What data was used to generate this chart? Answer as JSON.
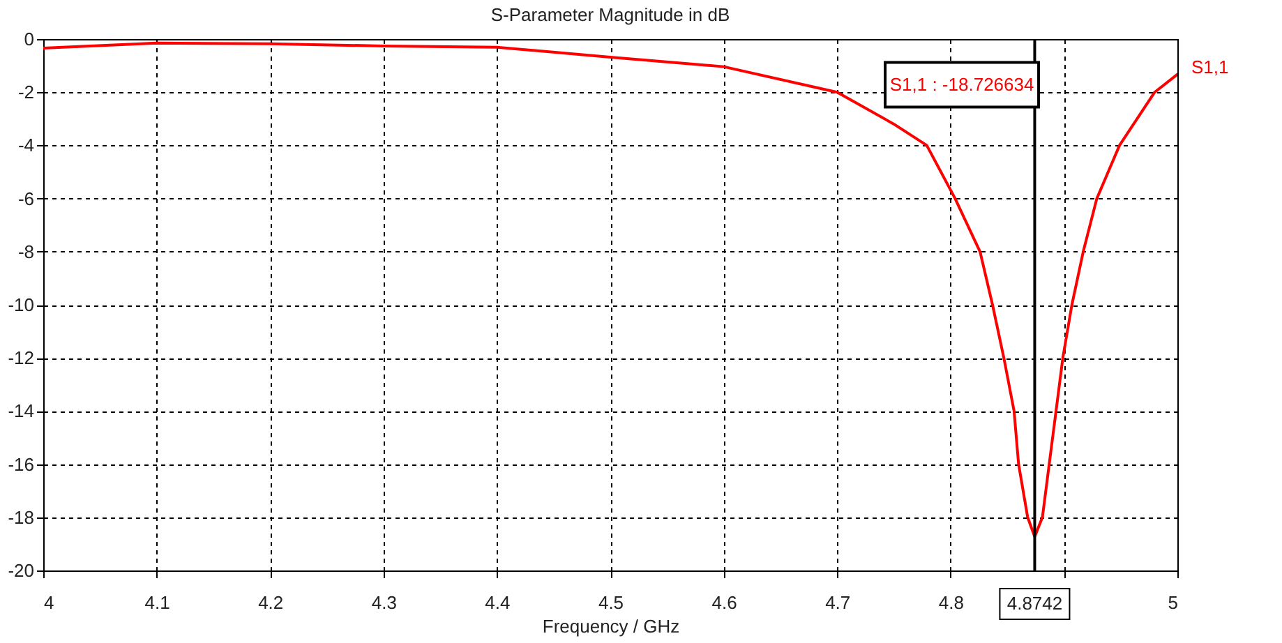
{
  "chart_data": {
    "type": "line",
    "title": "S-Parameter Magnitude in dB",
    "xlabel": "Frequency / GHz",
    "x": [
      4,
      4.1,
      4.2,
      4.3,
      4.4,
      4.5,
      4.6,
      4.7,
      4.75,
      4.779,
      4.804,
      4.826,
      4.837,
      4.847,
      4.856,
      4.86,
      4.868,
      4.8742,
      4.881,
      4.887,
      4.893,
      4.899,
      4.907,
      4.917,
      4.929,
      4.949,
      4.98,
      5
    ],
    "series": [
      {
        "name": "S1,1",
        "color": "#ff0000",
        "values": [
          -0.34,
          -0.15,
          -0.18,
          -0.26,
          -0.31,
          -0.68,
          -1.04,
          -2.0,
          -3.2,
          -4,
          -6,
          -8,
          -10,
          -12,
          -14,
          -16,
          -18,
          -18.73,
          -18,
          -16,
          -14,
          -12,
          -10,
          -8,
          -6,
          -4,
          -2,
          -1.33
        ]
      }
    ],
    "xlim": [
      4,
      5
    ],
    "xticks": [
      4,
      4.1,
      4.2,
      4.3,
      4.4,
      4.5,
      4.6,
      4.7,
      4.8,
      {
        "value": 4.9,
        "label": null
      },
      5
    ],
    "ylim": [
      -20,
      0
    ],
    "yticks": [
      0,
      -2,
      -4,
      -6,
      -8,
      -10,
      -12,
      -14,
      -16,
      -18,
      -20
    ],
    "grid": true,
    "line_style": "solid",
    "marker": "none",
    "legend": false,
    "ref_lines": [
      {
        "axis": "x",
        "value": 4.8742,
        "label": "4.8742",
        "color": "#000000"
      }
    ],
    "annotations": [
      "S1,1 : -18.726634"
    ]
  }
}
